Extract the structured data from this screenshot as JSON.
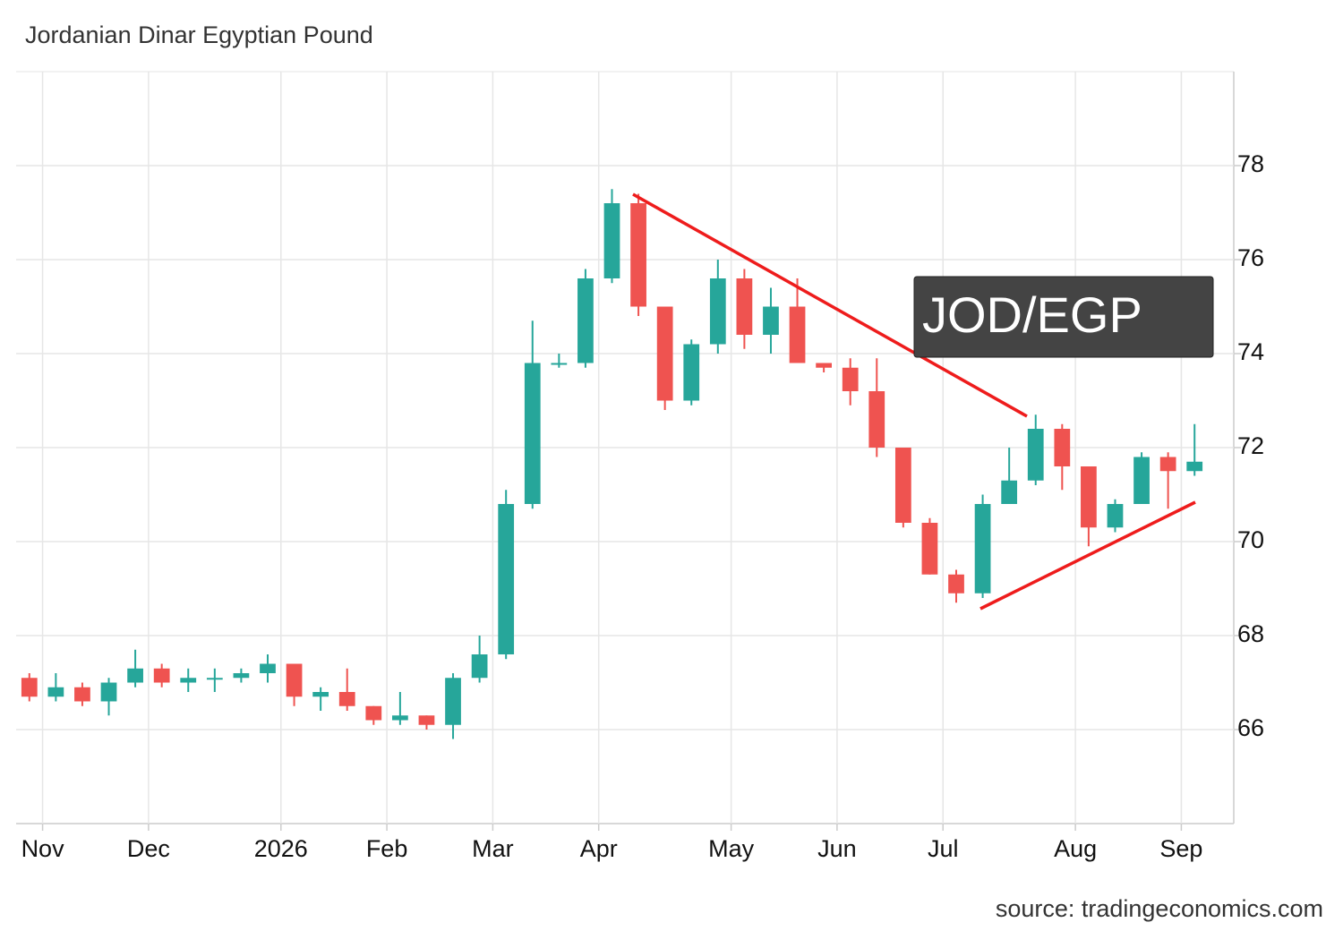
{
  "chart_data": {
    "type": "candlestick",
    "title": "Jordanian Dinar Egyptian Pound",
    "annotation": "JOD/EGP",
    "source": "source: tradingeconomics.com",
    "categories": [
      null,
      "Nov",
      null,
      null,
      null,
      "Dec",
      null,
      null,
      null,
      null,
      "2026",
      null,
      null,
      null,
      "Feb",
      null,
      null,
      null,
      "Mar",
      null,
      null,
      null,
      "Apr",
      null,
      null,
      null,
      null,
      "May",
      null,
      null,
      null,
      "Jun",
      null,
      null,
      null,
      "Jul",
      null,
      null,
      null,
      null,
      "Aug",
      null,
      null,
      null,
      "Sep"
    ],
    "open": [
      67.1,
      66.7,
      66.9,
      66.6,
      67.0,
      67.3,
      67.0,
      67.1,
      67.1,
      67.2,
      67.4,
      66.7,
      66.8,
      66.5,
      66.2,
      66.3,
      66.1,
      67.1,
      67.6,
      70.8,
      73.8,
      73.8,
      75.6,
      77.2,
      75.0,
      73.0,
      74.2,
      75.6,
      74.4,
      75.0,
      73.8,
      73.7,
      73.2,
      72.0,
      70.4,
      69.3,
      68.9,
      70.8,
      71.3,
      72.4,
      71.6,
      70.3,
      70.8,
      71.8,
      71.5
    ],
    "high": [
      67.2,
      67.2,
      67.0,
      67.1,
      67.7,
      67.4,
      67.3,
      67.3,
      67.3,
      67.6,
      67.4,
      66.9,
      67.3,
      66.5,
      66.8,
      66.3,
      67.2,
      68.0,
      71.1,
      74.7,
      74.0,
      75.8,
      77.5,
      77.4,
      75.0,
      74.3,
      76.0,
      75.8,
      75.4,
      75.6,
      73.8,
      73.9,
      73.9,
      72.0,
      70.5,
      69.4,
      71.0,
      72.0,
      72.7,
      72.5,
      71.6,
      70.9,
      71.9,
      71.9,
      72.5
    ],
    "low": [
      66.6,
      66.6,
      66.5,
      66.3,
      66.9,
      66.9,
      66.8,
      66.8,
      67.0,
      67.0,
      66.5,
      66.4,
      66.4,
      66.1,
      66.1,
      66.0,
      65.8,
      67.0,
      67.5,
      70.7,
      73.7,
      73.7,
      75.5,
      74.8,
      72.8,
      72.9,
      74.0,
      74.1,
      74.0,
      73.8,
      73.6,
      72.9,
      71.8,
      70.3,
      69.3,
      68.7,
      68.8,
      70.8,
      71.2,
      71.1,
      69.9,
      70.2,
      70.8,
      70.7,
      71.4
    ],
    "close": [
      66.7,
      66.9,
      66.6,
      67.0,
      67.3,
      67.0,
      67.1,
      67.1,
      67.2,
      67.4,
      66.7,
      66.8,
      66.5,
      66.2,
      66.3,
      66.1,
      67.1,
      67.6,
      70.8,
      73.8,
      73.8,
      75.6,
      77.2,
      75.0,
      73.0,
      74.2,
      75.6,
      74.4,
      75.0,
      73.8,
      73.7,
      73.2,
      72.0,
      70.4,
      69.3,
      68.9,
      70.8,
      71.3,
      72.4,
      71.6,
      70.3,
      70.8,
      71.8,
      71.5,
      71.7
    ],
    "up_color": "#26a69a",
    "down_color": "#ef5350",
    "ylim": [
      64,
      80
    ],
    "yticks": [
      66,
      68,
      70,
      72,
      74,
      76,
      78
    ],
    "grid": true
  }
}
